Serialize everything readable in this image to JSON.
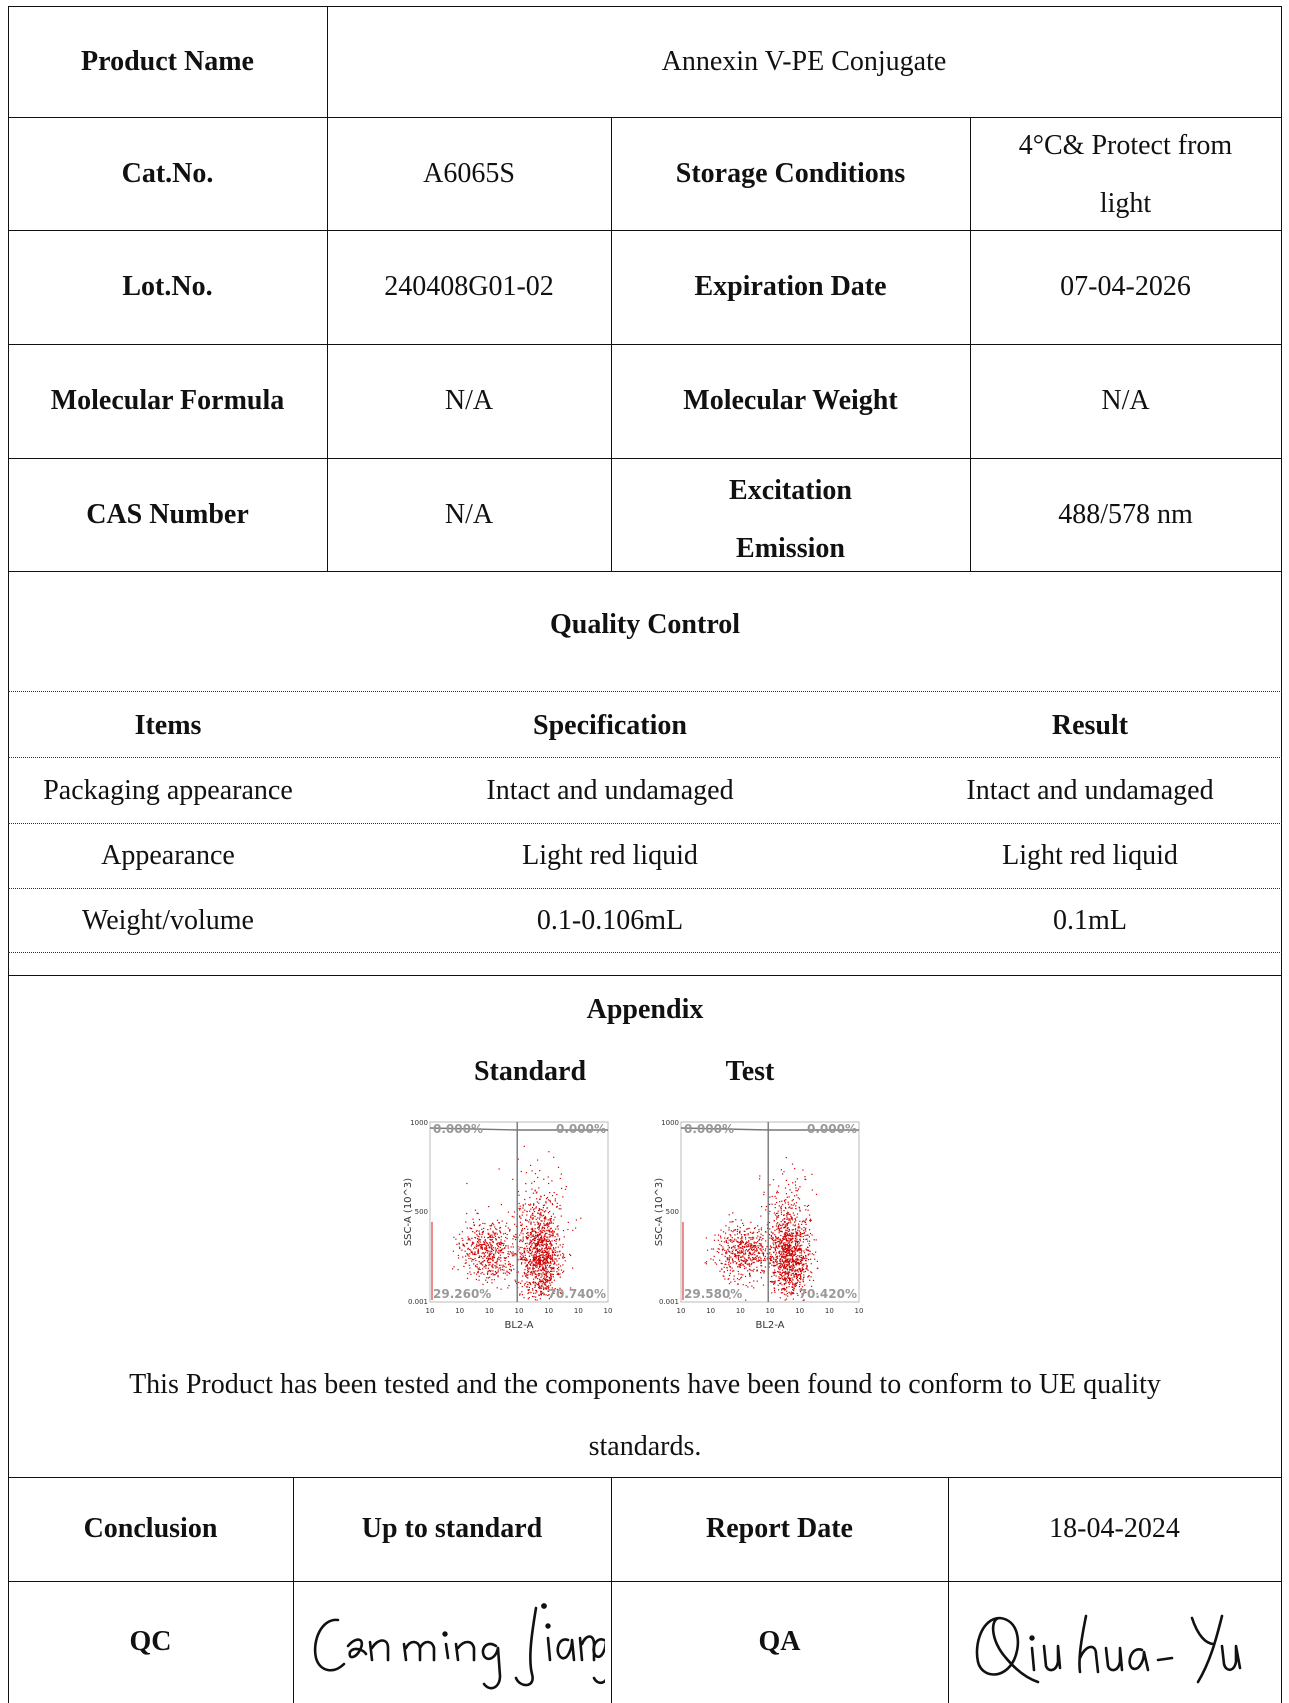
{
  "info": {
    "product_name_label": "Product Name",
    "product_name": "Annexin V-PE Conjugate",
    "cat_label": "Cat.No.",
    "cat_value": "A6065S",
    "storage_label": "Storage Conditions",
    "storage_value_line1": "4°C& Protect from",
    "storage_value_line2": "light",
    "lot_label": "Lot.No.",
    "lot_value": "240408G01-02",
    "expiration_label": "Expiration Date",
    "expiration_value": "07-04-2026",
    "formula_label": "Molecular Formula",
    "formula_value": "N/A",
    "weight_label": "Molecular Weight",
    "weight_value": "N/A",
    "cas_label": "CAS Number",
    "cas_value": "N/A",
    "excitation_label_line1": "Excitation",
    "excitation_label_line2": "Emission",
    "excitation_value": "488/578 nm"
  },
  "quality_control": {
    "title": "Quality Control",
    "headers": [
      "Items",
      "Specification",
      "Result"
    ],
    "rows": [
      {
        "item": "Packaging appearance",
        "spec": "Intact and undamaged",
        "result": "Intact and undamaged"
      },
      {
        "item": "Appearance",
        "spec": "Light red liquid",
        "result": "Light red liquid"
      },
      {
        "item": "Weight/volume",
        "spec": "0.1-0.106mL",
        "result": "0.1mL"
      }
    ]
  },
  "appendix": {
    "title": "Appendix",
    "standard_label": "Standard",
    "test_label": "Test",
    "statement_line1": "This Product has been tested and the components have been found to conform to UE quality",
    "statement_line2": "standards."
  },
  "chart_data": [
    {
      "type": "scatter",
      "title": "Standard",
      "xlabel": "BL2-A",
      "ylabel": "SSC-A (10^3)",
      "x_scale": "log",
      "y_ticks": [
        "1000",
        "500",
        "0.001"
      ],
      "x_ticks": [
        "10",
        "10",
        "10",
        "10",
        "10",
        "10",
        "10"
      ],
      "quadrants": {
        "top_left": "0.000%",
        "top_right": "0.000%",
        "bottom_left": "29.260%",
        "bottom_right": "70.740%"
      },
      "point_color": "#cc0000"
    },
    {
      "type": "scatter",
      "title": "Test",
      "xlabel": "BL2-A",
      "ylabel": "SSC-A (10^3)",
      "x_scale": "log",
      "y_ticks": [
        "1000",
        "500",
        "0.001"
      ],
      "x_ticks": [
        "10",
        "10",
        "10",
        "10",
        "10",
        "10",
        "10"
      ],
      "quadrants": {
        "top_left": "0.000%",
        "top_right": "0.000%",
        "bottom_left": "29.580%",
        "bottom_right": "70.420%"
      },
      "point_color": "#cc0000"
    }
  ],
  "footer": {
    "conclusion_label": "Conclusion",
    "conclusion_value": "Up to standard",
    "report_date_label": "Report Date",
    "report_date_value": "18-04-2024",
    "qc_label": "QC",
    "qa_label": "QA",
    "qc_signature": "Cen ming Jiang",
    "qa_signature": "Qiu hua · Yu"
  }
}
